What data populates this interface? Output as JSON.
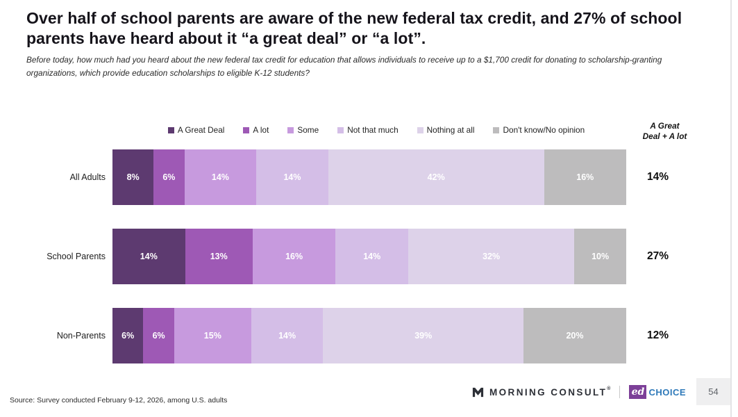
{
  "title": "Over half of school parents are aware of the new federal tax credit, and 27% of school parents have heard about it “a great deal” or “a lot”.",
  "subtitle": "Before today, how much had you heard about the new federal tax credit for education that allows individuals to receive up to a $1,700 credit for donating to scholarship-granting organizations, which provide education scholarships to eligible K-12 students?",
  "summary_header": "A Great\nDeal + A lot",
  "chart_data": {
    "type": "bar",
    "stacked": true,
    "orientation": "horizontal",
    "value_suffix": "%",
    "categories": [
      "All Adults",
      "School Parents",
      "Non-Parents"
    ],
    "series": [
      {
        "name": "A Great Deal",
        "color": "#5d3a70",
        "values": [
          8,
          14,
          6
        ]
      },
      {
        "name": "A lot",
        "color": "#9e59b5",
        "values": [
          6,
          13,
          6
        ]
      },
      {
        "name": "Some",
        "color": "#c79ade",
        "values": [
          14,
          16,
          15
        ]
      },
      {
        "name": "Not that much",
        "color": "#d4bee7",
        "values": [
          14,
          14,
          14
        ]
      },
      {
        "name": "Nothing at all",
        "color": "#ddd2e9",
        "values": [
          42,
          32,
          39
        ]
      },
      {
        "name": "Don't know/No opinion",
        "color": "#bdbcbd",
        "values": [
          16,
          10,
          20
        ]
      }
    ],
    "summary": {
      "label": "A Great Deal + A lot",
      "values": [
        "14%",
        "27%",
        "12%"
      ]
    },
    "legend_position": "top",
    "xlim": [
      0,
      100
    ],
    "grid": false
  },
  "footer": {
    "source": "Source: Survey conducted February 9-12, 2026, among U.S. adults",
    "morning_consult_label": "MORNING CONSULT",
    "morning_consult_reg": "®",
    "edchoice_ed": "ed",
    "edchoice_choice": "CHOICE",
    "page_number": "54"
  }
}
